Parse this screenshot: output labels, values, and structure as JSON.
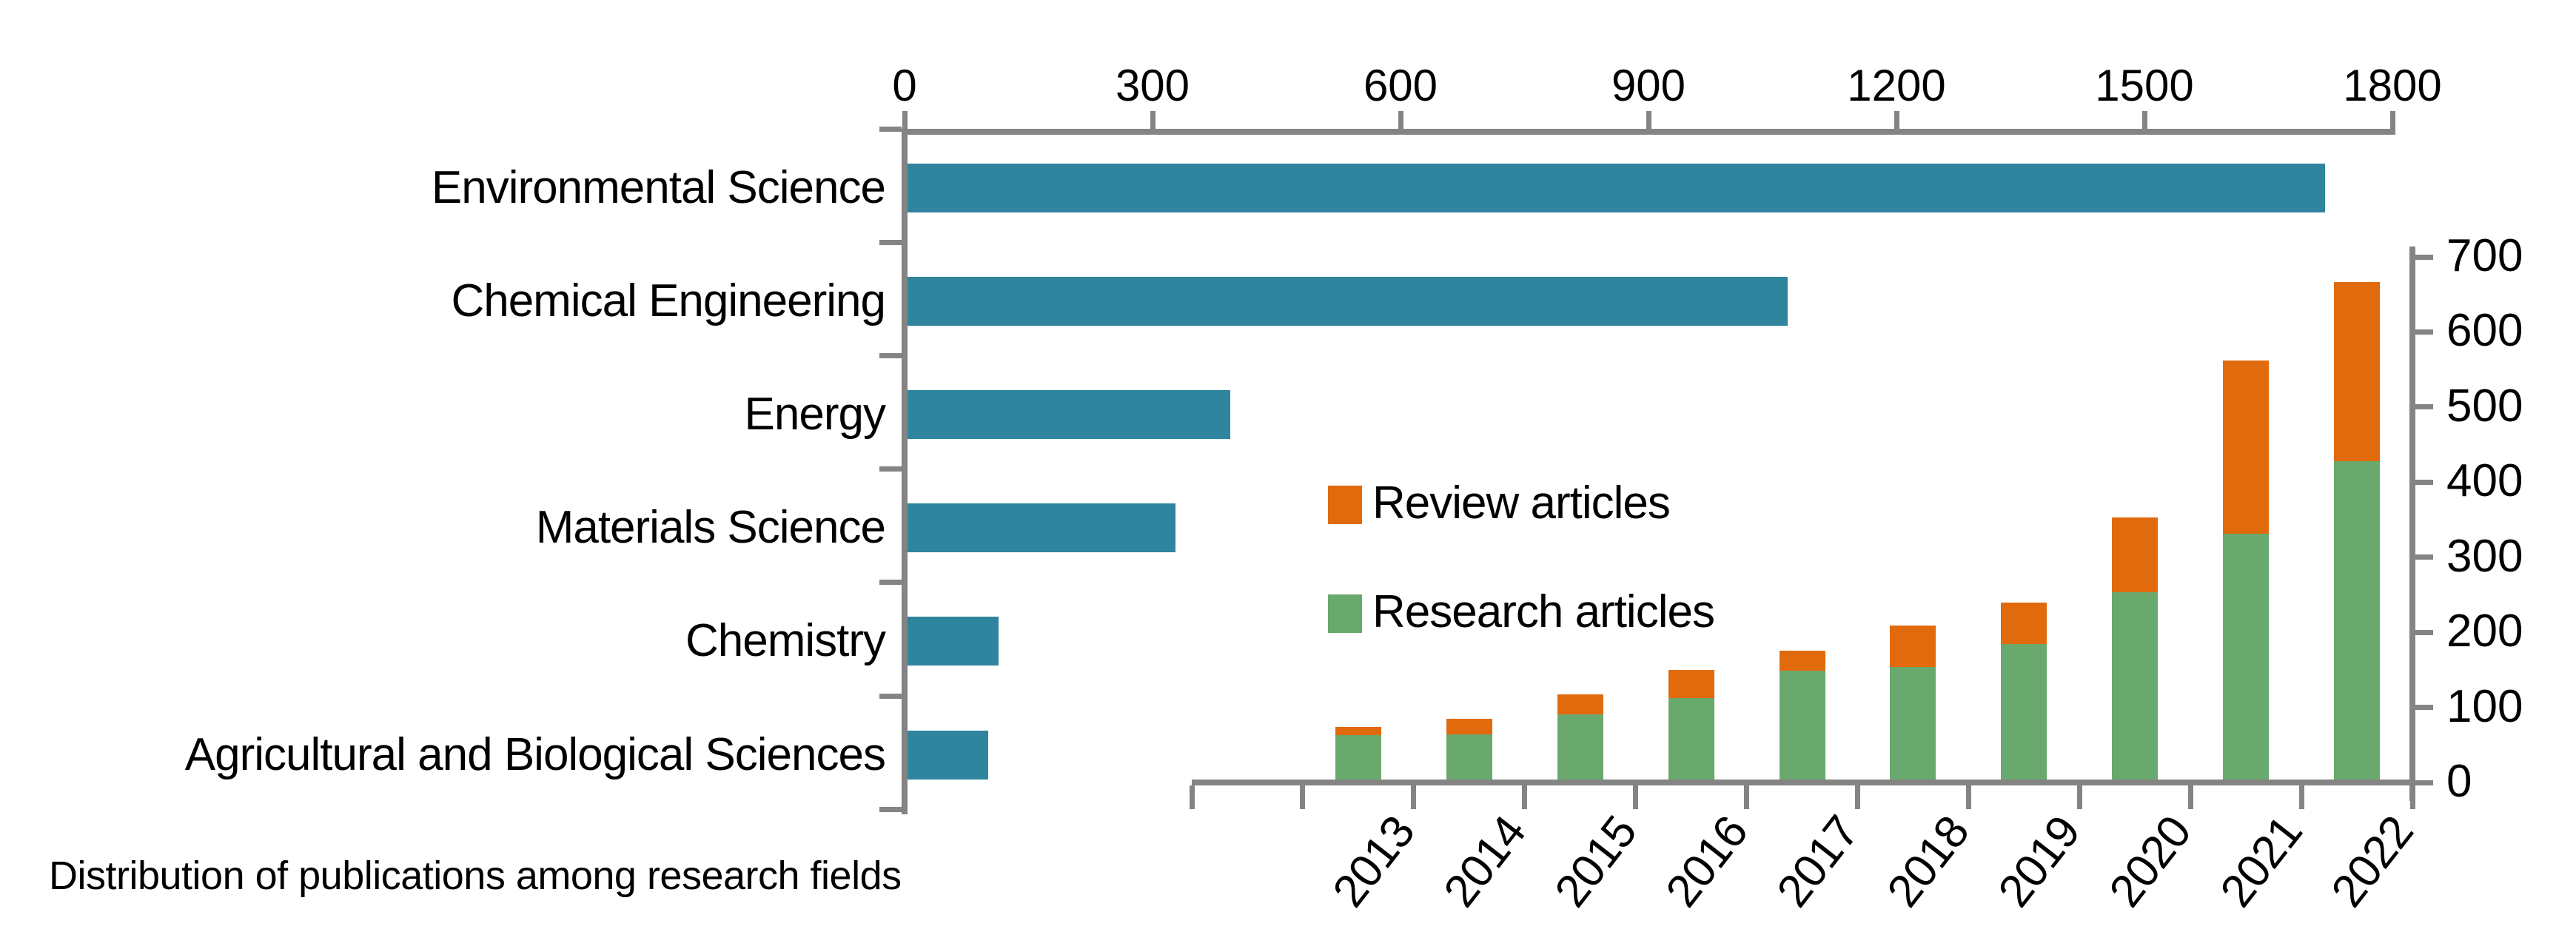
{
  "caption": "Distribution of publications among research fields",
  "colors": {
    "teal": "#2F859D",
    "orange": "#E16A0C",
    "green": "#69A96E",
    "axis_gray": "#848484",
    "text": "#000000",
    "background": "#FFFFFF"
  },
  "legend": {
    "items": [
      {
        "label": "Review articles",
        "color": "#E16A0C"
      },
      {
        "label": "Research articles",
        "color": "#69A96E"
      }
    ]
  },
  "chart_data": [
    {
      "type": "bar",
      "orientation": "horizontal",
      "title": "Distribution of publications among research fields",
      "categories": [
        "Environmental Science",
        "Chemical Engineering",
        "Energy",
        "Materials Science",
        "Chemistry",
        "Agricultural and Biological Sciences"
      ],
      "values": [
        1715,
        1065,
        390,
        324,
        110,
        98
      ],
      "xlabel": "",
      "ylabel": "",
      "xlim": [
        0,
        1800
      ],
      "xticks": [
        0,
        300,
        600,
        900,
        1200,
        1500,
        1800
      ],
      "axis_position": "top",
      "grid": false,
      "bar_color": "#2F859D"
    },
    {
      "type": "bar",
      "stacked": true,
      "orientation": "vertical",
      "title": "",
      "categories": [
        "2013",
        "2014",
        "2015",
        "2016",
        "2017",
        "2018",
        "2019",
        "2020",
        "2021",
        "2022"
      ],
      "series": [
        {
          "name": "Research articles",
          "color": "#69A96E",
          "values": [
            59,
            60,
            87,
            108,
            145,
            150,
            180,
            249,
            327,
            424
          ]
        },
        {
          "name": "Review articles",
          "color": "#E16A0C",
          "values": [
            11,
            21,
            26,
            38,
            27,
            55,
            56,
            100,
            231,
            239
          ]
        }
      ],
      "totals": [
        70,
        81,
        113,
        146,
        172,
        205,
        236,
        349,
        558,
        663
      ],
      "xlabel": "",
      "ylabel": "",
      "ylim": [
        0,
        700
      ],
      "yticks": [
        0,
        100,
        200,
        300,
        400,
        500,
        600,
        700
      ],
      "axis_position": "right",
      "grid": false,
      "legend_position": "inside-left"
    }
  ]
}
